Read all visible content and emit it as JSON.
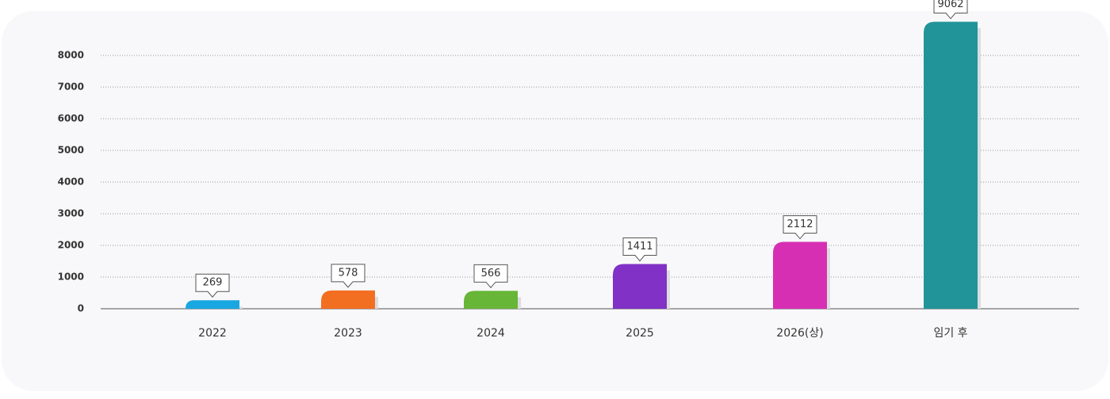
{
  "chart_data": {
    "type": "bar",
    "categories": [
      "2022",
      "2023",
      "2024",
      "2025",
      "2026(상)",
      "임기 후"
    ],
    "values": [
      269,
      578,
      566,
      1411,
      2112,
      9062
    ],
    "colors": [
      "#19a7e1",
      "#f26f21",
      "#67b637",
      "#8131c5",
      "#d72fb4",
      "#219499"
    ],
    "ylim": [
      0,
      9200
    ],
    "yticks": [
      0,
      1000,
      2000,
      3000,
      4000,
      5000,
      6000,
      7000,
      8000
    ],
    "grid": true
  }
}
